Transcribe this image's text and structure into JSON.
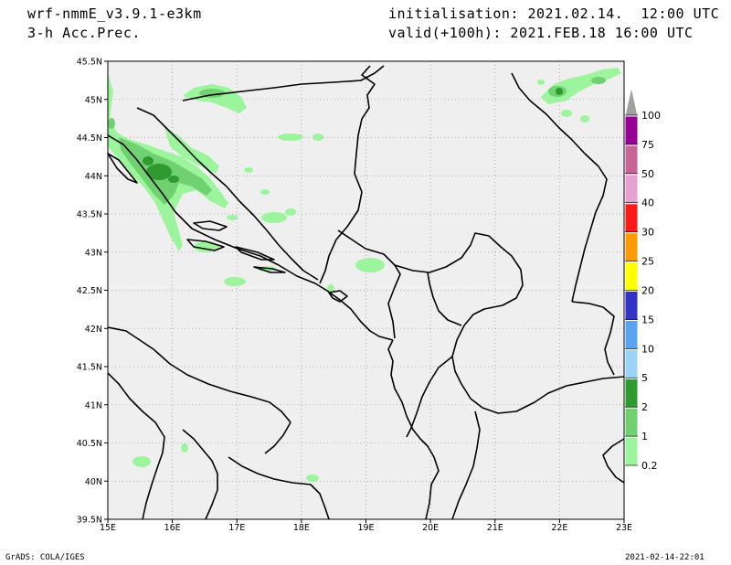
{
  "header": {
    "model": "wrf-nmmE_v3.9.1-e3km",
    "field": "3-h Acc.Prec.",
    "initialisation": "initialisation: 2021.02.14.  12:00 UTC",
    "valid": "valid(+100h): 2021.FEB.18 16:00 UTC"
  },
  "footer": {
    "left": "GrADS: COLA/IGES",
    "right": "2021-02-14-22:01"
  },
  "map": {
    "lon_labels": [
      "15E",
      "16E",
      "17E",
      "18E",
      "19E",
      "20E",
      "21E",
      "22E",
      "23E"
    ],
    "lat_labels": [
      "45.5N",
      "45N",
      "44.5N",
      "44N",
      "43.5N",
      "43N",
      "42.5N",
      "42N",
      "41.5N",
      "41N",
      "40.5N",
      "40N",
      "39.5N"
    ],
    "background": "#efefef",
    "grid": true
  },
  "colorbar": {
    "labels": [
      "0.2",
      "1",
      "2",
      "5",
      "10",
      "15",
      "20",
      "25",
      "30",
      "40",
      "50",
      "75",
      "100"
    ],
    "colors": [
      "#9cf59c",
      "#6fd16f",
      "#2f9a2f",
      "#9dd3f8",
      "#58a4f0",
      "#3232c8",
      "#ffff00",
      "#ff9a00",
      "#ff1a1a",
      "#e6a0d2",
      "#c86496",
      "#960096",
      "#a0a0a0"
    ]
  }
}
